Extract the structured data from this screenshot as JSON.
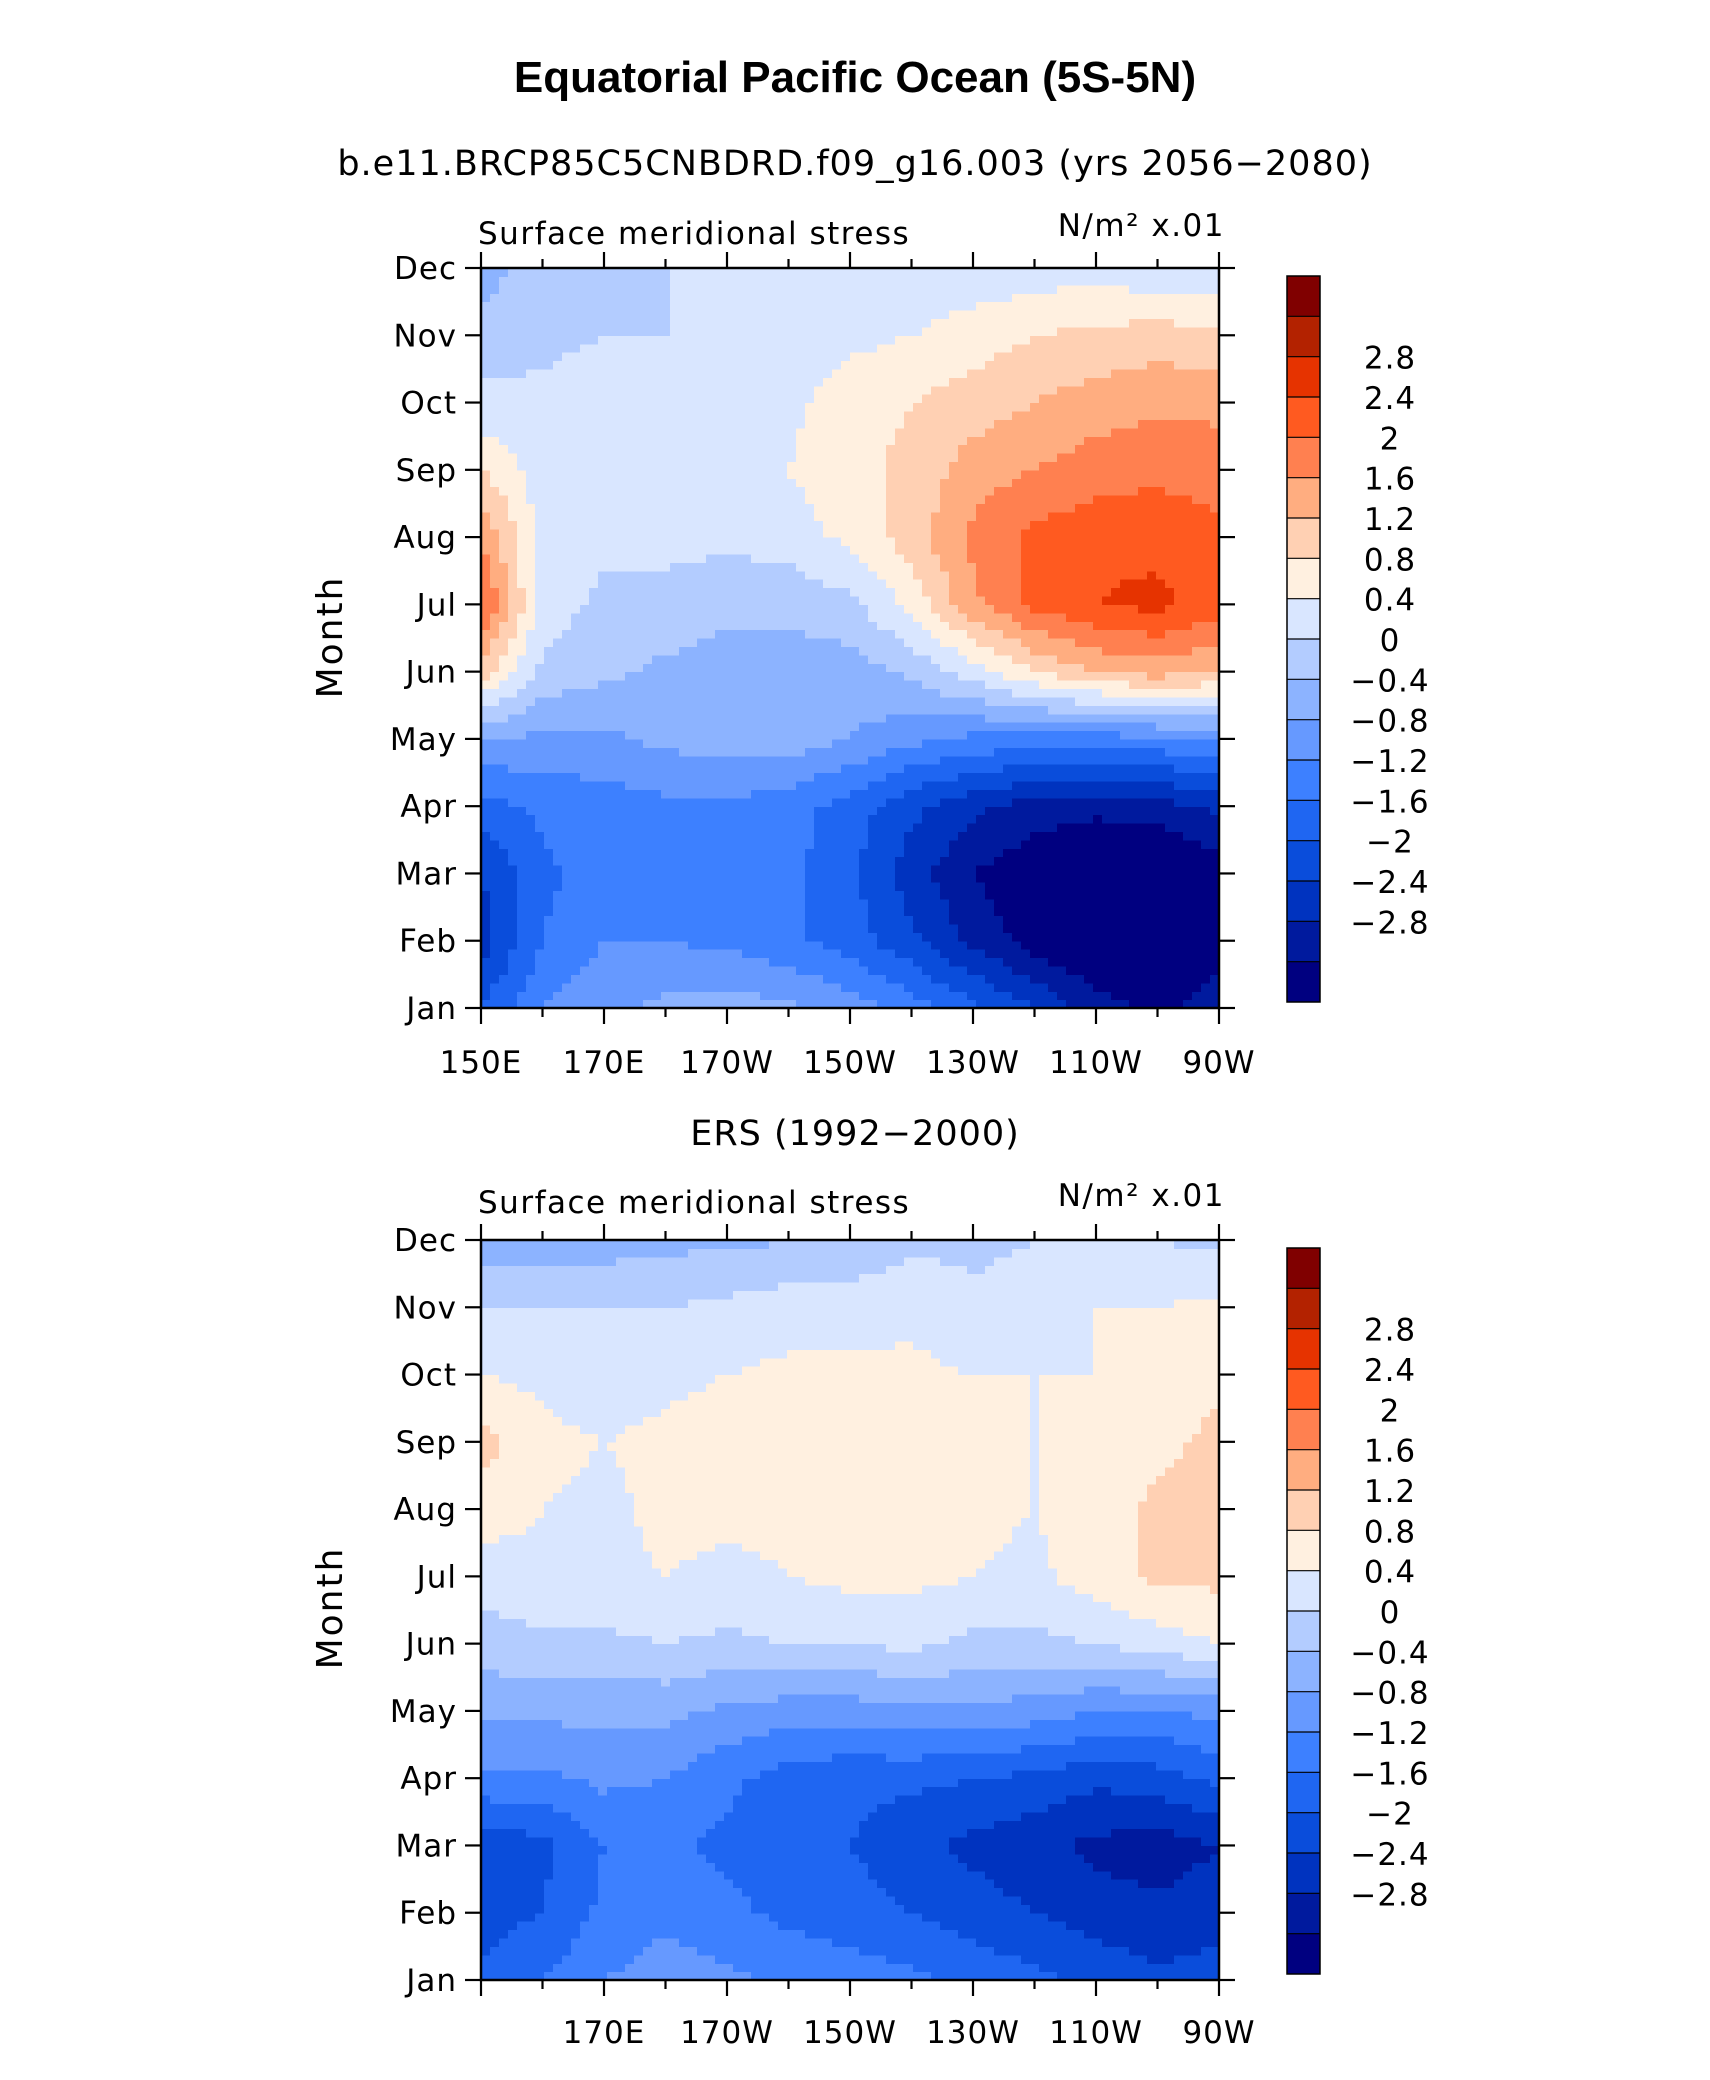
{
  "title": "Equatorial Pacific Ocean (5S-5N)",
  "colormap": [
    "#000080",
    "#001a9e",
    "#0033bf",
    "#0a4ddb",
    "#1f66f2",
    "#3d80ff",
    "#6699ff",
    "#8cb3ff",
    "#b3ccff",
    "#d9e6ff",
    "#fff0e0",
    "#ffd0b3",
    "#ffad80",
    "#ff8050",
    "#ff5a20",
    "#e63300",
    "#b32200",
    "#800000"
  ],
  "colorbar_labels": [
    "2.8",
    "2.4",
    "2",
    "1.6",
    "1.2",
    "0.8",
    "0.4",
    "0",
    "−0.4",
    "−0.8",
    "−1.2",
    "−1.6",
    "−2",
    "−2.4",
    "−2.8"
  ],
  "chart_data": [
    {
      "type": "heatmap",
      "subtitle": "b.e11.BRCP85C5CNBDRD.f09_g16.003 (yrs 2056−2080)",
      "left_label": "Surface meridional stress",
      "right_label": "N/m² x.01",
      "ylabel": "Month",
      "xlabel": "",
      "x_ticks": [
        "150E",
        "170E",
        "170W",
        "150W",
        "130W",
        "110W",
        "90W"
      ],
      "y_ticks": [
        "Jan",
        "Feb",
        "Mar",
        "Apr",
        "May",
        "Jun",
        "Jul",
        "Aug",
        "Sep",
        "Oct",
        "Nov",
        "Dec"
      ],
      "levels": [
        -2.8,
        -2.4,
        -2,
        -1.6,
        -1.2,
        -0.8,
        -0.4,
        0,
        0.4,
        0.8,
        1.2,
        1.6,
        2,
        2.4,
        2.8
      ],
      "x_longitudes_deg_east": [
        150,
        160,
        170,
        180,
        190,
        200,
        210,
        220,
        230,
        240,
        250,
        260,
        270
      ],
      "values": [
        [
          -1.6,
          -0.8,
          -0.5,
          -0.3,
          -0.2,
          -0.3,
          -0.6,
          -1.0,
          -1.5,
          -2.0,
          -2.6,
          -2.9,
          -2.6
        ],
        [
          -2.2,
          -1.2,
          -0.8,
          -0.8,
          -0.9,
          -1.1,
          -1.4,
          -1.9,
          -2.5,
          -3.0,
          -3.3,
          -3.3,
          -3.0
        ],
        [
          -2.0,
          -1.3,
          -1.0,
          -1.0,
          -1.0,
          -1.1,
          -1.5,
          -2.2,
          -2.8,
          -3.1,
          -3.3,
          -3.3,
          -3.0
        ],
        [
          -1.4,
          -1.1,
          -1.0,
          -0.9,
          -0.9,
          -1.0,
          -1.4,
          -1.9,
          -2.3,
          -2.6,
          -2.7,
          -2.6,
          -2.3
        ],
        [
          -0.4,
          -0.5,
          -0.5,
          -0.3,
          -0.2,
          -0.2,
          -0.4,
          -0.7,
          -0.9,
          -1.0,
          -1.0,
          -0.9,
          -0.8
        ],
        [
          1.4,
          0.3,
          0.1,
          -0.1,
          -0.2,
          -0.2,
          -0.2,
          0.1,
          0.6,
          1.2,
          1.6,
          1.8,
          1.6
        ],
        [
          2.5,
          0.6,
          0.3,
          0.3,
          0.1,
          0.1,
          0.3,
          0.9,
          1.9,
          2.5,
          2.8,
          2.9,
          2.6
        ],
        [
          2.0,
          0.6,
          0.5,
          0.5,
          0.5,
          0.6,
          0.9,
          1.4,
          2.1,
          2.5,
          2.7,
          2.7,
          2.5
        ],
        [
          1.2,
          0.6,
          0.6,
          0.6,
          0.6,
          0.8,
          1.1,
          1.3,
          1.8,
          2.0,
          2.2,
          2.3,
          2.2
        ],
        [
          0.5,
          0.5,
          0.6,
          0.6,
          0.6,
          0.7,
          1.0,
          1.2,
          1.4,
          1.6,
          1.8,
          1.9,
          1.9
        ],
        [
          0.2,
          0.3,
          0.4,
          0.4,
          0.5,
          0.6,
          0.7,
          0.8,
          1.0,
          1.2,
          1.3,
          1.4,
          1.3
        ],
        [
          -0.2,
          0.2,
          0.3,
          0.4,
          0.4,
          0.4,
          0.5,
          0.5,
          0.5,
          0.6,
          0.6,
          0.5,
          0.4
        ]
      ]
    },
    {
      "type": "heatmap",
      "subtitle": "ERS (1992−2000)",
      "left_label": "Surface meridional stress",
      "right_label": "N/m² x.01",
      "ylabel": "Month",
      "xlabel": "",
      "x_ticks": [
        "170E",
        "170W",
        "150W",
        "130W",
        "110W",
        "90W"
      ],
      "y_ticks": [
        "Jan",
        "Feb",
        "Mar",
        "Apr",
        "May",
        "Jun",
        "Jul",
        "Aug",
        "Sep",
        "Oct",
        "Nov",
        "Dec"
      ],
      "levels": [
        -2.8,
        -2.4,
        -2,
        -1.6,
        -1.2,
        -0.8,
        -0.4,
        0,
        0.4,
        0.8,
        1.2,
        1.6,
        2,
        2.4,
        2.8
      ],
      "x_longitudes_deg_east": [
        150,
        160,
        170,
        180,
        190,
        200,
        210,
        220,
        230,
        240,
        250,
        260,
        270
      ],
      "values": [
        [
          -1.5,
          -1.2,
          -0.8,
          -0.6,
          -0.7,
          -0.9,
          -1.0,
          -1.1,
          -1.3,
          -1.5,
          -1.7,
          -1.9,
          -1.8
        ],
        [
          -1.8,
          -1.6,
          -1.1,
          -0.9,
          -1.1,
          -1.3,
          -1.4,
          -1.6,
          -1.8,
          -2.0,
          -2.2,
          -2.3,
          -2.2
        ],
        [
          -1.9,
          -1.7,
          -1.2,
          -1.1,
          -1.3,
          -1.4,
          -1.6,
          -1.9,
          -2.1,
          -2.3,
          -2.5,
          -2.6,
          -2.4
        ],
        [
          -0.9,
          -0.9,
          -0.7,
          -0.8,
          -1.1,
          -1.4,
          -1.5,
          -1.5,
          -1.6,
          -1.7,
          -1.9,
          -1.8,
          -1.5
        ],
        [
          -0.3,
          -0.3,
          -0.3,
          -0.3,
          -0.5,
          -0.6,
          -0.6,
          -0.5,
          -0.5,
          -0.6,
          -0.8,
          -0.8,
          -0.7
        ],
        [
          0.2,
          0.3,
          0.3,
          0.4,
          0.3,
          0.4,
          0.4,
          0.5,
          0.3,
          0.3,
          0.4,
          0.6,
          0.8
        ],
        [
          0.6,
          0.7,
          0.7,
          0.8,
          0.7,
          0.8,
          0.9,
          0.9,
          0.8,
          0.7,
          1.0,
          1.3,
          1.3
        ],
        [
          1.0,
          0.8,
          0.7,
          0.9,
          0.9,
          0.9,
          1.0,
          1.0,
          0.9,
          0.8,
          1.0,
          1.3,
          1.4
        ],
        [
          1.4,
          0.9,
          0.8,
          0.9,
          1.0,
          1.0,
          1.0,
          1.0,
          0.9,
          0.8,
          0.9,
          1.1,
          1.3
        ],
        [
          0.8,
          0.7,
          0.6,
          0.7,
          0.8,
          0.9,
          0.9,
          0.9,
          0.8,
          0.8,
          0.8,
          1.0,
          1.1
        ],
        [
          0.4,
          0.4,
          0.4,
          0.4,
          0.5,
          0.6,
          0.6,
          0.7,
          0.5,
          0.6,
          0.8,
          0.8,
          0.9
        ],
        [
          -0.3,
          -0.2,
          -0.2,
          -0.1,
          -0.1,
          0.0,
          0.1,
          0.3,
          0.3,
          0.4,
          0.4,
          0.4,
          0.3
        ]
      ]
    }
  ]
}
